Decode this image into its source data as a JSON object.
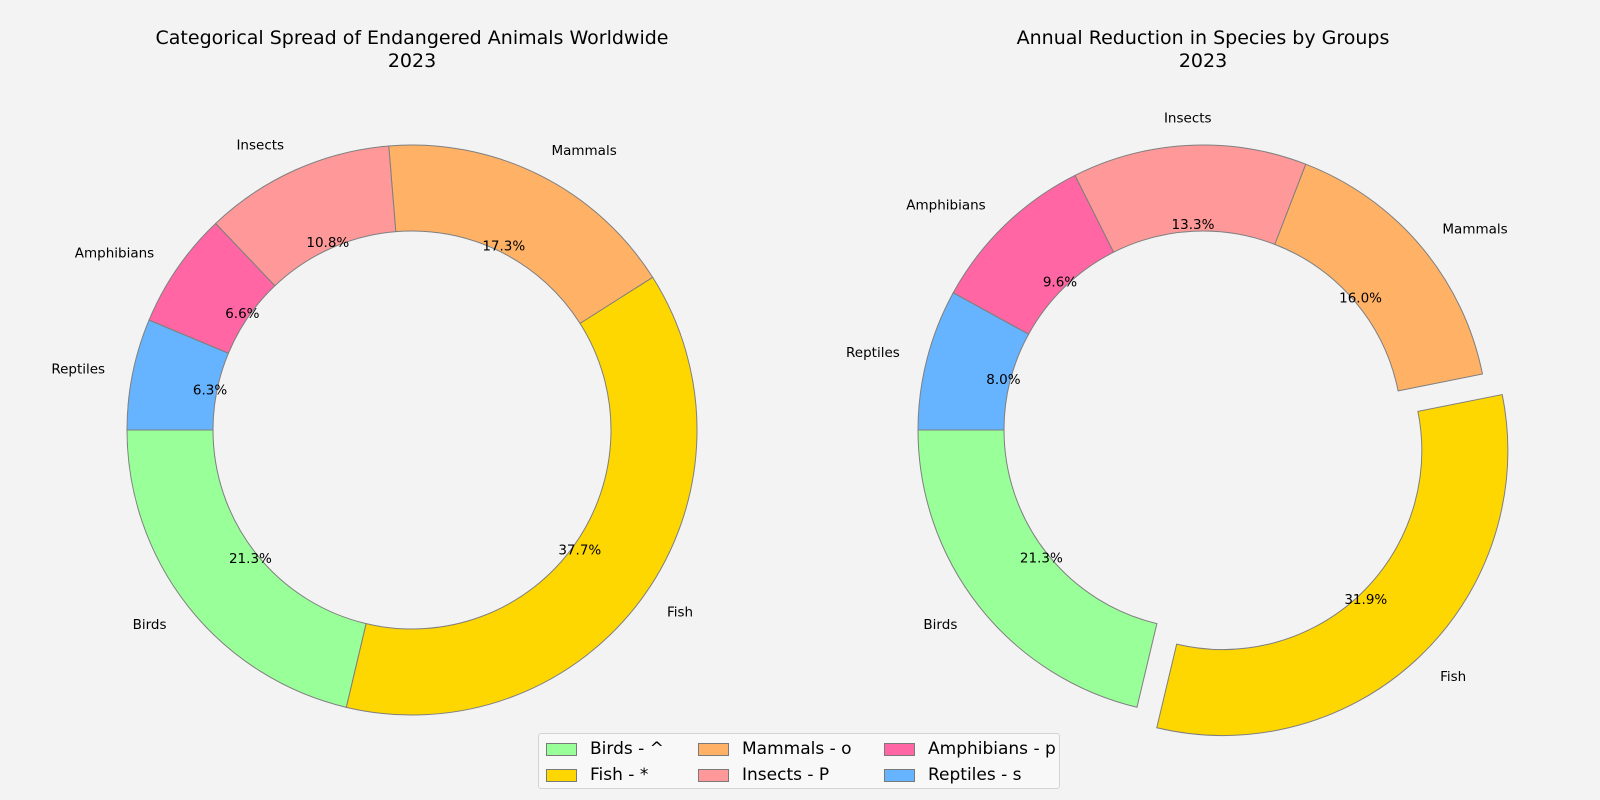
{
  "chart_data": [
    {
      "type": "pie",
      "style": "donut",
      "title": "Categorical Spread of Endangered Animals Worldwide\n2023",
      "categories": [
        "Birds",
        "Fish",
        "Mammals",
        "Insects",
        "Amphibians",
        "Reptiles"
      ],
      "values": [
        21.3,
        37.7,
        17.3,
        10.8,
        6.6,
        6.3
      ],
      "value_labels": [
        "21.3%",
        "37.7%",
        "17.3%",
        "10.8%",
        "6.6%",
        "6.3%"
      ],
      "colors": [
        "#99ff99",
        "#ffd700",
        "#ffb266",
        "#ff9999",
        "#ff66a3",
        "#66b3ff"
      ],
      "explode": [
        0,
        0,
        0,
        0,
        0,
        0
      ]
    },
    {
      "type": "pie",
      "style": "donut",
      "title": "Annual Reduction in Species by Groups\n2023",
      "categories": [
        "Birds",
        "Fish",
        "Mammals",
        "Insects",
        "Amphibians",
        "Reptiles"
      ],
      "values": [
        21.3,
        31.9,
        16.0,
        13.3,
        9.6,
        8.0
      ],
      "value_labels": [
        "21.3%",
        "31.9%",
        "16.0%",
        "13.3%",
        "9.6%",
        "8.0%"
      ],
      "colors": [
        "#99ff99",
        "#ffd700",
        "#ffb266",
        "#ff9999",
        "#ff66a3",
        "#66b3ff"
      ],
      "explode": [
        0,
        0.1,
        0,
        0,
        0,
        0
      ]
    }
  ],
  "legend": {
    "placement": "bottom-center",
    "items": [
      {
        "label": "Birds - ^",
        "color": "#99ff99"
      },
      {
        "label": "Mammals - o",
        "color": "#ffb266"
      },
      {
        "label": "Amphibians - p",
        "color": "#ff66a3"
      },
      {
        "label": "Fish - *",
        "color": "#ffd700"
      },
      {
        "label": "Insects - P",
        "color": "#ff9999"
      },
      {
        "label": "Reptiles - s",
        "color": "#66b3ff"
      }
    ]
  }
}
